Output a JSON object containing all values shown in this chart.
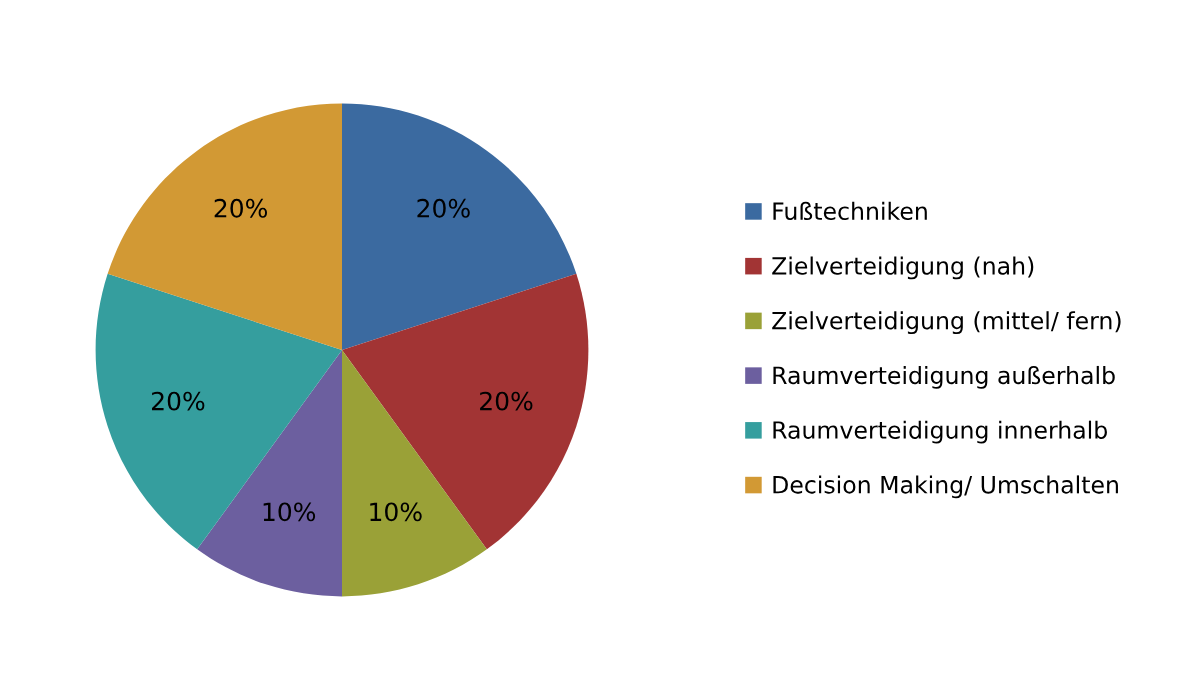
{
  "chart_data": {
    "type": "pie",
    "categories": [
      "Fußtechniken",
      "Zielverteidigung (nah)",
      "Zielverteidigung (mittel/ fern)",
      "Raumverteidigung außerhalb",
      "Raumverteidigung innerhalb",
      "Decision Making/ Umschalten"
    ],
    "values": [
      20,
      20,
      10,
      10,
      20,
      20
    ],
    "colors": [
      "#3b6aa0",
      "#a23434",
      "#9aa137",
      "#6c5f9f",
      "#359e9e",
      "#d29934"
    ],
    "value_labels": [
      "20%",
      "20%",
      "10%",
      "10%",
      "20%",
      "20%"
    ],
    "legend": "right"
  }
}
